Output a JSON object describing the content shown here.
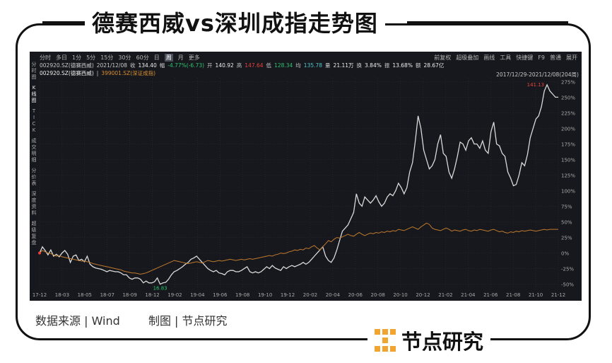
{
  "title": "德赛西威vs深圳成指走势图",
  "toolbar": {
    "periods": [
      "分时",
      "多日",
      "1分",
      "5分",
      "15分",
      "30分",
      "60分",
      "日",
      "周",
      "月",
      "更多"
    ],
    "active_period": "周",
    "right_items": [
      "前复权",
      "超级叠加",
      "画线",
      "工具",
      "快捷键",
      "F9",
      "普通",
      "展开"
    ]
  },
  "quote": {
    "code_line": "002920.SZ(德赛西威)",
    "date": "2021/12/08",
    "close_label": "收",
    "close": "134.40",
    "change_label": "幅",
    "change": "-4.77%(-6.73)",
    "open_label": "开",
    "open": "140.92",
    "high_label": "高",
    "high": "147.64",
    "low_label": "低",
    "low": "128.34",
    "avg_label": "均",
    "avg": "135.78",
    "volume_label": "量",
    "volume": "21.11万",
    "turnover_label": "换",
    "turnover": "3.84%",
    "amplitude_label": "振",
    "amplitude": "13.68%",
    "amount_label": "额",
    "amount": "28.67亿"
  },
  "legend_line": {
    "series1": "002920.SZ(德赛西威)",
    "separator": "|",
    "series2": "399001.SZ(深证成指)"
  },
  "date_range": "2017/12/29-2021/12/08(204周)",
  "sidebar": [
    "分\n时\n图",
    "K\n线\n图",
    "T\nI\nC\nK",
    "成\n交\n明\n细",
    "分\n价\n表",
    "深\n度\n资\n料",
    "超\n级\n复\n盘"
  ],
  "colors": {
    "stock_line": "#d9d9d9",
    "index_line": "#c07a2c",
    "background": "#16181d",
    "grid": "#2a2d33",
    "axis_text": "#a9a9a9",
    "max_label": "#e8423c",
    "min_label": "#2ec36e"
  },
  "chart_data": {
    "type": "line",
    "title": "",
    "xlabel": "",
    "ylabel": "",
    "ylim": [
      -55,
      280
    ],
    "y_ticks": [
      "275%",
      "250%",
      "225%",
      "200%",
      "175%",
      "150%",
      "125%",
      "100%",
      "75%",
      "50%",
      "25%",
      "0%",
      "-25%",
      "-50%"
    ],
    "y_tick_values": [
      275,
      250,
      225,
      200,
      175,
      150,
      125,
      100,
      75,
      50,
      25,
      0,
      -25,
      -50
    ],
    "x_ticks": [
      "17-12",
      "18-03",
      "18-05",
      "18-07",
      "18-09",
      "18-12",
      "19-02",
      "19-04",
      "19-06",
      "19-08",
      "19-10",
      "19-12",
      "20-02",
      "20-04",
      "20-06",
      "20-08",
      "20-10",
      "20-12",
      "21-02",
      "21-04",
      "21-06",
      "21-08",
      "21-10",
      "21-12"
    ],
    "annotations": {
      "max_value": "141.13",
      "min_value": "16.83"
    },
    "series": [
      {
        "name": "002920.SZ(德赛西威)",
        "values": [
          0,
          10,
          4,
          -3,
          5,
          -5,
          -2,
          -6,
          0,
          4,
          -2,
          -15,
          -5,
          -3,
          -12,
          -10,
          -14,
          -5,
          -18,
          -22,
          -24,
          -25,
          -26,
          -28,
          -30,
          -28,
          -29,
          -30,
          -30,
          -32,
          -35,
          -35,
          -40,
          -42,
          -40,
          -40,
          -42,
          -48,
          -45,
          -48,
          -48,
          -46,
          -40,
          -50,
          -48,
          -47,
          -42,
          -35,
          -30,
          -28,
          -25,
          -22,
          -18,
          -15,
          -10,
          -8,
          -5,
          -10,
          -15,
          -20,
          -25,
          -28,
          -30,
          -28,
          -32,
          -33,
          -35,
          -30,
          -28,
          -28,
          -30,
          -30,
          -28,
          -25,
          -22,
          -30,
          -32,
          -30,
          -32,
          -30,
          -26,
          -22,
          -25,
          -20,
          -24,
          -26,
          -28,
          -22,
          -25,
          -22,
          -20,
          -22,
          -20,
          -18,
          -15,
          -18,
          -15,
          -10,
          -5,
          0,
          5,
          10,
          -5,
          -12,
          -15,
          -8,
          5,
          20,
          35,
          40,
          45,
          55,
          65,
          95,
          80,
          75,
          90,
          85,
          80,
          85,
          92,
          82,
          75,
          80,
          90,
          95,
          92,
          100,
          112,
          105,
          95,
          105,
          130,
          145,
          180,
          220,
          200,
          165,
          150,
          135,
          140,
          150,
          175,
          190,
          160,
          155,
          130,
          120,
          135,
          155,
          178,
          175,
          165,
          180,
          185,
          175,
          175,
          168,
          180,
          165,
          160,
          195,
          210,
          175,
          172,
          160,
          155,
          130,
          120,
          108,
          110,
          125,
          145,
          140,
          158,
          185,
          200,
          215,
          220,
          235,
          260,
          270,
          260,
          255,
          250,
          250
        ]
      },
      {
        "name": "399001.SZ(深证成指)",
        "values": [
          0,
          4,
          2,
          0,
          -1,
          -3,
          -5,
          -4,
          -6,
          -7,
          -8,
          -9,
          -10,
          -11,
          -12,
          -13,
          -13,
          -14,
          -15,
          -17,
          -18,
          -19,
          -20,
          -21,
          -22,
          -23,
          -24,
          -25,
          -26,
          -27,
          -29,
          -30,
          -31,
          -32,
          -32,
          -33,
          -34,
          -33,
          -32,
          -30,
          -28,
          -26,
          -24,
          -22,
          -20,
          -18,
          -16,
          -14,
          -12,
          -13,
          -14,
          -15,
          -16,
          -17,
          -16,
          -15,
          -14,
          -15,
          -16,
          -14,
          -12,
          -13,
          -14,
          -13,
          -12,
          -13,
          -12,
          -11,
          -10,
          -11,
          -12,
          -11,
          -10,
          -11,
          -10,
          -9,
          -10,
          -9,
          -8,
          -7,
          -6,
          -5,
          -4,
          -5,
          -3,
          -2,
          0,
          -1,
          0,
          2,
          3,
          5,
          4,
          6,
          5,
          8,
          7,
          10,
          12,
          8,
          5,
          10,
          15,
          20,
          18,
          22,
          25,
          24,
          26,
          28,
          30,
          28,
          27,
          30,
          33,
          30,
          28,
          30,
          32,
          31,
          33,
          32,
          34,
          33,
          35,
          34,
          36,
          35,
          38,
          37,
          36,
          38,
          40,
          42,
          40,
          38,
          42,
          45,
          48,
          46,
          40,
          38,
          37,
          36,
          38,
          40,
          38,
          35,
          37,
          36,
          35,
          37,
          38,
          36,
          35,
          37,
          36,
          38,
          37,
          36,
          35,
          37,
          38,
          36,
          34,
          35,
          33,
          32,
          34,
          33,
          35,
          34,
          36,
          35,
          36,
          37,
          36,
          35,
          36,
          37,
          38,
          37,
          38,
          38,
          38,
          38
        ]
      }
    ]
  },
  "footer": {
    "source": "数据来源 |  Wind",
    "maker": "制图 |  节点研究"
  },
  "brand": "节点研究"
}
